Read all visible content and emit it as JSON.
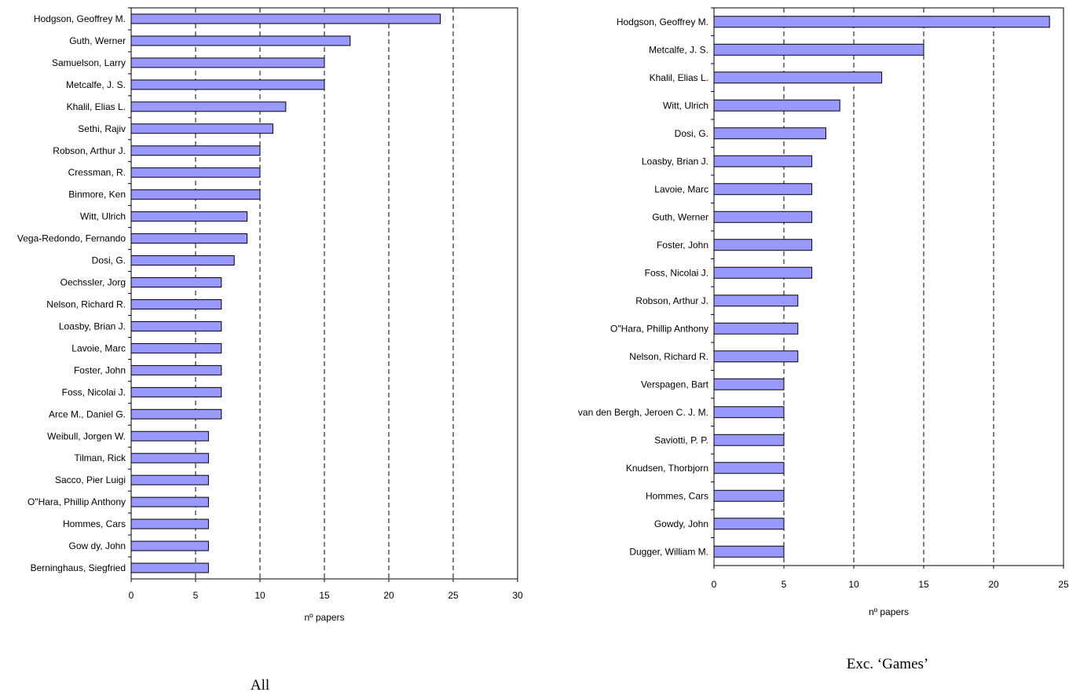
{
  "chart_data": [
    {
      "type": "bar",
      "orientation": "horizontal",
      "categories": [
        "Hodgson, Geoffrey M.",
        "Guth, Werner",
        "Samuelson, Larry",
        "Metcalfe, J. S.",
        "Khalil, Elias L.",
        "Sethi, Rajiv",
        "Robson, Arthur J.",
        "Cressman, R.",
        "Binmore, Ken",
        "Witt, Ulrich",
        "Vega-Redondo, Fernando",
        "Dosi, G.",
        "Oechssler, Jorg",
        "Nelson, Richard R.",
        "Loasby, Brian J.",
        "Lavoie, Marc",
        "Foster, John",
        "Foss, Nicolai J.",
        "Arce M., Daniel G.",
        "Weibull, Jorgen W.",
        "Tilman, Rick",
        "Sacco, Pier Luigi",
        "O\"Hara, Phillip Anthony",
        "Hommes, Cars",
        "Gow dy, John",
        "Berninghaus, Siegfried"
      ],
      "values": [
        24,
        17,
        15,
        15,
        12,
        11,
        10,
        10,
        10,
        9,
        9,
        8,
        7,
        7,
        7,
        7,
        7,
        7,
        7,
        6,
        6,
        6,
        6,
        6,
        6,
        6
      ],
      "xlabel": "nº papers",
      "xlim": [
        0,
        30
      ],
      "xticks": [
        0,
        5,
        10,
        15,
        20,
        25,
        30
      ],
      "tick_labels": [
        "0",
        "5",
        "10",
        "15",
        "20",
        "25",
        "30"
      ],
      "caption": "All",
      "grid": "dashed vertical",
      "bar_color": "#9999ff"
    },
    {
      "type": "bar",
      "orientation": "horizontal",
      "categories": [
        "Hodgson, Geoffrey M.",
        "Metcalfe, J. S.",
        "Khalil, Elias L.",
        "Witt, Ulrich",
        "Dosi, G.",
        "Loasby, Brian J.",
        "Lavoie, Marc",
        "Guth, Werner",
        "Foster, John",
        "Foss, Nicolai J.",
        "Robson, Arthur J.",
        "O\"Hara, Phillip Anthony",
        "Nelson, Richard R.",
        "Verspagen, Bart",
        "van den Bergh, Jeroen C. J. M.",
        "Saviotti, P. P.",
        "Knudsen, Thorbjorn",
        "Hommes, Cars",
        "Gowdy, John",
        "Dugger, William M."
      ],
      "values": [
        24,
        15,
        12,
        9,
        8,
        7,
        7,
        7,
        7,
        7,
        6,
        6,
        6,
        5,
        5,
        5,
        5,
        5,
        5,
        5
      ],
      "xlabel": "nº papers",
      "xlim": [
        0,
        25
      ],
      "xticks": [
        0,
        5,
        10,
        15,
        20,
        25
      ],
      "tick_labels": [
        "0",
        "5",
        "10",
        "15",
        "20",
        "25"
      ],
      "caption": "Exc. ‘Games’",
      "grid": "dashed vertical",
      "bar_color": "#9999ff"
    }
  ]
}
